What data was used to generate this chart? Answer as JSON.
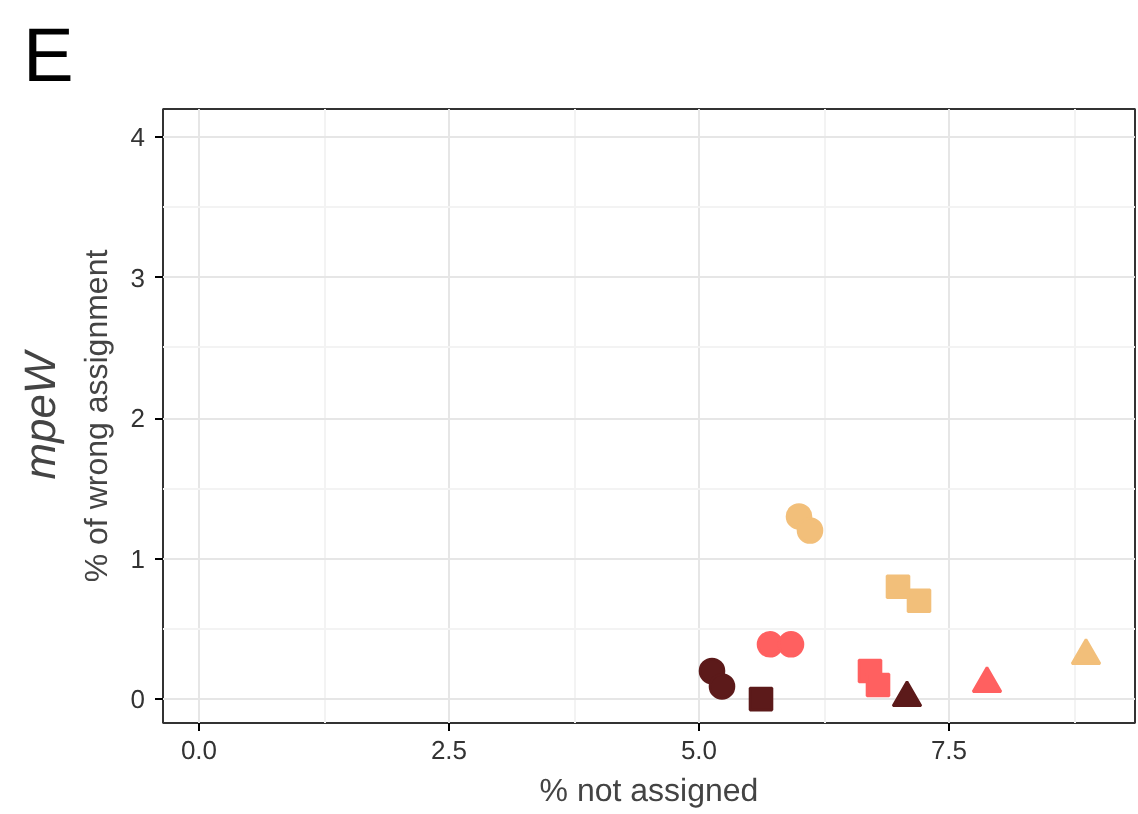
{
  "chart_data": {
    "type": "scatter",
    "title": "E",
    "xlabel": "% not assigned",
    "ylabel": "% of wrong assignment",
    "annotations": [
      "mpeW"
    ],
    "xlim": [
      -0.36,
      9.36
    ],
    "ylim": [
      -0.17,
      4.2
    ],
    "xticks": [
      {
        "value": 0,
        "label": "0.0"
      },
      {
        "value": 2.5,
        "label": "2.5"
      },
      {
        "value": 5,
        "label": "5.0"
      },
      {
        "value": 7.5,
        "label": "7.5"
      }
    ],
    "yticks": [
      0,
      1,
      2,
      3,
      4
    ],
    "grid": true,
    "series": [
      {
        "color": "#5c1a1a",
        "marker": "circle",
        "x": [
          5.13
        ],
        "values": [
          0.2
        ]
      },
      {
        "color": "#5c1a1a",
        "marker": "circle",
        "x": [
          5.23
        ],
        "values": [
          0.09
        ]
      },
      {
        "color": "#5c1a1a",
        "marker": "square",
        "x": [
          5.62
        ],
        "values": [
          0.0
        ]
      },
      {
        "color": "#5c1a1a",
        "marker": "triangle",
        "x": [
          7.08
        ],
        "values": [
          0.01
        ]
      },
      {
        "color": "#ff6060",
        "marker": "circle",
        "x": [
          5.71
        ],
        "values": [
          0.39
        ]
      },
      {
        "color": "#ff6060",
        "marker": "circle",
        "x": [
          5.92
        ],
        "values": [
          0.39
        ]
      },
      {
        "color": "#ff6060",
        "marker": "square",
        "x": [
          6.71
        ],
        "values": [
          0.2
        ]
      },
      {
        "color": "#ff6060",
        "marker": "square",
        "x": [
          6.79
        ],
        "values": [
          0.1
        ]
      },
      {
        "color": "#ff6060",
        "marker": "triangle",
        "x": [
          7.88
        ],
        "values": [
          0.11
        ]
      },
      {
        "color": "#f2bf7a",
        "marker": "circle",
        "x": [
          6.0
        ],
        "values": [
          1.3
        ]
      },
      {
        "color": "#f2bf7a",
        "marker": "circle",
        "x": [
          6.11
        ],
        "values": [
          1.2
        ]
      },
      {
        "color": "#f2bf7a",
        "marker": "square",
        "x": [
          6.99
        ],
        "values": [
          0.8
        ]
      },
      {
        "color": "#f2bf7a",
        "marker": "square",
        "x": [
          7.2
        ],
        "values": [
          0.7
        ]
      },
      {
        "color": "#f2bf7a",
        "marker": "triangle",
        "x": [
          8.87
        ],
        "values": [
          0.31
        ]
      }
    ]
  }
}
